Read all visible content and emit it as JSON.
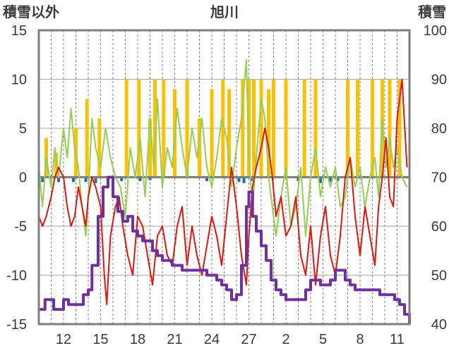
{
  "chart_data": {
    "type": "line",
    "title": "旭川",
    "left_axis": {
      "label": "積雪以外",
      "ylim": [
        -15,
        15
      ],
      "ticks": [
        15,
        10,
        5,
        0,
        -5,
        -10,
        -15
      ]
    },
    "right_axis": {
      "label": "積雪",
      "ylim": [
        40,
        100
      ],
      "ticks": [
        100,
        90,
        80,
        70,
        60,
        50,
        40
      ]
    },
    "x_ticks": [
      "12",
      "15",
      "18",
      "21",
      "24",
      "27",
      "2",
      "5",
      "8",
      "11"
    ],
    "x_tick_days": [
      2,
      5,
      8,
      11,
      14,
      17,
      20,
      23,
      26,
      29
    ],
    "x_range_days": [
      0,
      30
    ],
    "grid": {
      "horizontal": true,
      "vertical_dashed": true
    },
    "colors": {
      "red": "#e8140c",
      "green": "#92d050",
      "purple": "#7030a0",
      "orange": "#ffc000",
      "blue": "#1f6fb8",
      "zero_line": "#7f7f7f",
      "frame": "#7f7f7f"
    },
    "series": [
      {
        "color": "#ffc000",
        "axis": "left",
        "style": "bars",
        "bars": [
          [
            0.6,
            4
          ],
          [
            1.4,
            2.5
          ],
          [
            3.0,
            5
          ],
          [
            3.9,
            8
          ],
          [
            4.9,
            6
          ],
          [
            7.1,
            10
          ],
          [
            8.1,
            10
          ],
          [
            9.0,
            6
          ],
          [
            9.4,
            10
          ],
          [
            10.1,
            10
          ],
          [
            11.0,
            9
          ],
          [
            12.0,
            10
          ],
          [
            13.0,
            6
          ],
          [
            14.0,
            9
          ],
          [
            14.9,
            10
          ],
          [
            15.4,
            9
          ],
          [
            16.5,
            10
          ],
          [
            17.0,
            10
          ],
          [
            17.4,
            10
          ],
          [
            18.0,
            10
          ],
          [
            18.6,
            9
          ],
          [
            19.0,
            10
          ],
          [
            20.0,
            10
          ],
          [
            21.5,
            10
          ],
          [
            22.4,
            10
          ],
          [
            25.0,
            10
          ],
          [
            25.8,
            10
          ],
          [
            27.0,
            10
          ],
          [
            27.8,
            10
          ],
          [
            28.4,
            10
          ],
          [
            29.2,
            10
          ]
        ]
      },
      {
        "color": "#1f6fb8",
        "axis": "left",
        "style": "bars",
        "bars": [
          [
            0.3,
            -0.5
          ],
          [
            1.6,
            -0.5
          ],
          [
            2.8,
            -0.5
          ],
          [
            3.8,
            -0.5
          ],
          [
            4.6,
            -0.6
          ],
          [
            5.6,
            -0.5
          ],
          [
            6.7,
            -0.4
          ],
          [
            8.2,
            -0.4
          ],
          [
            9.0,
            -0.3
          ],
          [
            13.6,
            -0.4
          ],
          [
            16.2,
            -0.5
          ],
          [
            16.6,
            -0.6
          ],
          [
            17.2,
            -0.4
          ],
          [
            21.0,
            -0.4
          ],
          [
            22.8,
            -0.6
          ],
          [
            23.6,
            -0.5
          ],
          [
            24.2,
            -0.4
          ]
        ]
      },
      {
        "color": "#92d050",
        "axis": "left",
        "style": "line",
        "points": [
          [
            0,
            1
          ],
          [
            0.3,
            -3
          ],
          [
            0.6,
            2
          ],
          [
            1.0,
            -1
          ],
          [
            1.3,
            3
          ],
          [
            1.6,
            0
          ],
          [
            2.0,
            5
          ],
          [
            2.3,
            2
          ],
          [
            2.6,
            7
          ],
          [
            2.9,
            3
          ],
          [
            3.2,
            1
          ],
          [
            3.5,
            -3
          ],
          [
            3.8,
            -6
          ],
          [
            4.0,
            -2
          ],
          [
            4.3,
            6
          ],
          [
            4.6,
            3
          ],
          [
            5.0,
            1
          ],
          [
            5.4,
            5
          ],
          [
            5.8,
            2
          ],
          [
            6.2,
            0
          ],
          [
            6.6,
            -1
          ],
          [
            7.0,
            -4
          ],
          [
            7.4,
            3
          ],
          [
            7.8,
            0
          ],
          [
            8.2,
            4
          ],
          [
            8.6,
            -2
          ],
          [
            9.0,
            6
          ],
          [
            9.3,
            1
          ],
          [
            9.6,
            8
          ],
          [
            10.0,
            -1
          ],
          [
            10.4,
            3
          ],
          [
            10.8,
            1
          ],
          [
            11.2,
            7
          ],
          [
            11.6,
            3
          ],
          [
            12.0,
            0
          ],
          [
            12.4,
            5
          ],
          [
            12.8,
            2
          ],
          [
            13.2,
            6
          ],
          [
            13.6,
            1
          ],
          [
            14.0,
            -1
          ],
          [
            14.4,
            2
          ],
          [
            14.8,
            6
          ],
          [
            15.2,
            4
          ],
          [
            15.6,
            -1
          ],
          [
            16.0,
            3
          ],
          [
            16.4,
            6
          ],
          [
            16.8,
            12
          ],
          [
            17.0,
            2
          ],
          [
            17.3,
            -3
          ],
          [
            17.6,
            2
          ],
          [
            18.0,
            8
          ],
          [
            18.3,
            6
          ],
          [
            18.6,
            0
          ],
          [
            18.9,
            -3
          ],
          [
            19.2,
            -6
          ],
          [
            19.6,
            -2
          ],
          [
            20.0,
            1
          ],
          [
            20.4,
            -5
          ],
          [
            20.8,
            -3
          ],
          [
            21.2,
            1
          ],
          [
            21.6,
            -6
          ],
          [
            22.0,
            0
          ],
          [
            22.4,
            3
          ],
          [
            22.8,
            -2
          ],
          [
            23.2,
            1
          ],
          [
            23.6,
            -1
          ],
          [
            24.0,
            1
          ],
          [
            24.4,
            -3
          ],
          [
            24.8,
            -2
          ],
          [
            25.2,
            2
          ],
          [
            25.6,
            -1
          ],
          [
            26.0,
            1
          ],
          [
            26.4,
            -3
          ],
          [
            26.8,
            0
          ],
          [
            27.2,
            2
          ],
          [
            27.5,
            -2
          ],
          [
            27.8,
            6
          ],
          [
            28.1,
            1
          ],
          [
            28.4,
            4
          ],
          [
            28.7,
            1
          ],
          [
            29.0,
            3
          ],
          [
            29.4,
            0
          ],
          [
            29.8,
            -1
          ]
        ]
      },
      {
        "color": "#e8140c",
        "axis": "left",
        "style": "line",
        "points": [
          [
            0,
            -4
          ],
          [
            0.3,
            -5
          ],
          [
            0.6,
            -4
          ],
          [
            1.0,
            -2
          ],
          [
            1.3,
            0
          ],
          [
            1.6,
            1
          ],
          [
            2.0,
            0
          ],
          [
            2.3,
            -3
          ],
          [
            2.6,
            -5
          ],
          [
            2.9,
            -4
          ],
          [
            3.2,
            -1
          ],
          [
            3.5,
            -3
          ],
          [
            3.8,
            -5
          ],
          [
            4.0,
            -2
          ],
          [
            4.3,
            0
          ],
          [
            4.6,
            -1
          ],
          [
            5.0,
            -3
          ],
          [
            5.3,
            -10
          ],
          [
            5.5,
            -13
          ],
          [
            5.8,
            -6
          ],
          [
            6.2,
            -3
          ],
          [
            6.5,
            -2
          ],
          [
            6.8,
            -5
          ],
          [
            7.2,
            -8
          ],
          [
            7.6,
            -10
          ],
          [
            8.0,
            -4
          ],
          [
            8.4,
            -5
          ],
          [
            8.8,
            -8
          ],
          [
            9.2,
            -11
          ],
          [
            9.6,
            -6
          ],
          [
            10.0,
            -5
          ],
          [
            10.4,
            -8
          ],
          [
            10.8,
            -9
          ],
          [
            11.2,
            -5
          ],
          [
            11.6,
            -3
          ],
          [
            12.0,
            -9
          ],
          [
            12.4,
            -5
          ],
          [
            12.8,
            -8
          ],
          [
            13.2,
            -10
          ],
          [
            13.6,
            -7
          ],
          [
            14.0,
            -4
          ],
          [
            14.4,
            -6
          ],
          [
            14.8,
            -9
          ],
          [
            15.2,
            -4
          ],
          [
            15.6,
            1
          ],
          [
            16.0,
            -3
          ],
          [
            16.4,
            -8
          ],
          [
            16.8,
            -11
          ],
          [
            17.0,
            -6
          ],
          [
            17.3,
            -1
          ],
          [
            17.6,
            1
          ],
          [
            18.0,
            3
          ],
          [
            18.3,
            5
          ],
          [
            18.6,
            3
          ],
          [
            18.9,
            0
          ],
          [
            19.2,
            -4
          ],
          [
            19.6,
            -2
          ],
          [
            20.0,
            -6
          ],
          [
            20.4,
            -5
          ],
          [
            20.8,
            -2
          ],
          [
            21.2,
            -8
          ],
          [
            21.6,
            -10
          ],
          [
            22.0,
            -5
          ],
          [
            22.4,
            -11
          ],
          [
            22.8,
            -6
          ],
          [
            23.2,
            -3
          ],
          [
            23.6,
            -8
          ],
          [
            24.0,
            -10
          ],
          [
            24.4,
            -6
          ],
          [
            24.8,
            0
          ],
          [
            25.2,
            2
          ],
          [
            25.6,
            -4
          ],
          [
            26.0,
            -8
          ],
          [
            26.4,
            -3
          ],
          [
            26.8,
            -6
          ],
          [
            27.2,
            -9
          ],
          [
            27.5,
            -3
          ],
          [
            27.8,
            0
          ],
          [
            28.1,
            4
          ],
          [
            28.4,
            -2
          ],
          [
            28.7,
            -3
          ],
          [
            29.0,
            6
          ],
          [
            29.4,
            10
          ],
          [
            29.8,
            1
          ]
        ]
      },
      {
        "color": "#7030a0",
        "axis": "right",
        "style": "line",
        "points": [
          [
            0,
            43
          ],
          [
            0.3,
            43
          ],
          [
            0.5,
            45
          ],
          [
            1.0,
            45
          ],
          [
            1.2,
            43
          ],
          [
            1.8,
            43
          ],
          [
            2.0,
            45
          ],
          [
            2.4,
            44
          ],
          [
            2.8,
            44
          ],
          [
            3.2,
            44
          ],
          [
            3.6,
            46
          ],
          [
            4.0,
            47
          ],
          [
            4.3,
            52
          ],
          [
            4.8,
            62
          ],
          [
            5.2,
            68
          ],
          [
            5.6,
            70
          ],
          [
            6.0,
            66
          ],
          [
            6.4,
            63
          ],
          [
            6.8,
            61
          ],
          [
            7.2,
            62
          ],
          [
            7.6,
            59
          ],
          [
            8.0,
            58
          ],
          [
            8.4,
            57
          ],
          [
            8.8,
            57
          ],
          [
            9.2,
            55
          ],
          [
            9.6,
            54
          ],
          [
            10.0,
            53
          ],
          [
            10.4,
            53
          ],
          [
            10.8,
            52
          ],
          [
            11.2,
            52
          ],
          [
            11.6,
            51
          ],
          [
            12.0,
            51
          ],
          [
            12.4,
            51
          ],
          [
            12.8,
            51
          ],
          [
            13.2,
            51
          ],
          [
            13.6,
            50
          ],
          [
            14.0,
            50
          ],
          [
            14.4,
            49
          ],
          [
            14.8,
            48
          ],
          [
            15.2,
            47
          ],
          [
            15.6,
            45
          ],
          [
            16.0,
            46
          ],
          [
            16.4,
            52
          ],
          [
            16.8,
            64
          ],
          [
            17.0,
            67
          ],
          [
            17.3,
            62
          ],
          [
            17.6,
            59
          ],
          [
            18.0,
            56
          ],
          [
            18.4,
            53
          ],
          [
            18.8,
            49
          ],
          [
            19.2,
            47
          ],
          [
            19.6,
            46
          ],
          [
            20.0,
            45
          ],
          [
            20.4,
            45
          ],
          [
            20.8,
            45
          ],
          [
            21.2,
            45
          ],
          [
            21.6,
            47
          ],
          [
            22.0,
            49
          ],
          [
            22.4,
            49
          ],
          [
            22.8,
            48
          ],
          [
            23.2,
            48
          ],
          [
            23.6,
            49
          ],
          [
            24.0,
            51
          ],
          [
            24.4,
            51
          ],
          [
            24.8,
            49
          ],
          [
            25.2,
            48
          ],
          [
            25.6,
            47
          ],
          [
            26.0,
            47
          ],
          [
            26.4,
            47
          ],
          [
            26.8,
            47
          ],
          [
            27.2,
            47
          ],
          [
            27.6,
            46
          ],
          [
            28.0,
            46
          ],
          [
            28.4,
            46
          ],
          [
            28.8,
            45
          ],
          [
            29.2,
            44
          ],
          [
            29.6,
            42
          ],
          [
            30.0,
            40
          ]
        ]
      }
    ]
  }
}
